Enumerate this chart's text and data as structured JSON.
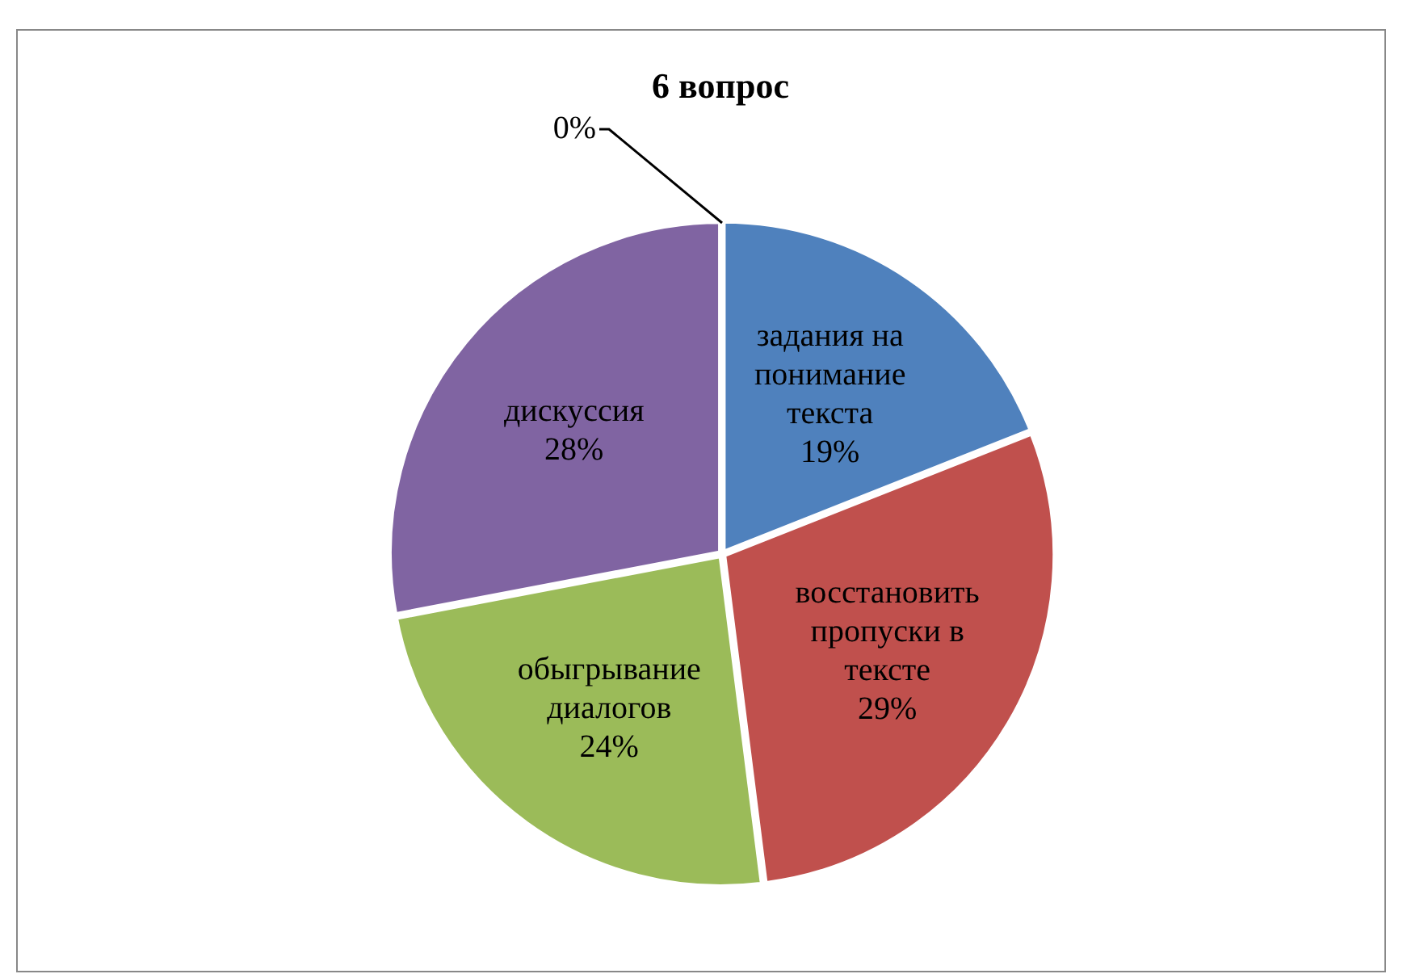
{
  "chart_data": {
    "type": "pie",
    "title": "6 вопрос",
    "categories": [
      "задания на понимание текста",
      "восстановить пропуски в тексте",
      "обыгрывание диалогов",
      "дискуссия",
      null
    ],
    "values": [
      19,
      29,
      24,
      28,
      0
    ],
    "colors": [
      "#4f81bd",
      "#c0504d",
      "#9bbb59",
      "#8064a2",
      "#4bacc6"
    ],
    "value_labels": [
      "19%",
      "29%",
      "24%",
      "28%",
      "0%"
    ],
    "legend": false
  }
}
